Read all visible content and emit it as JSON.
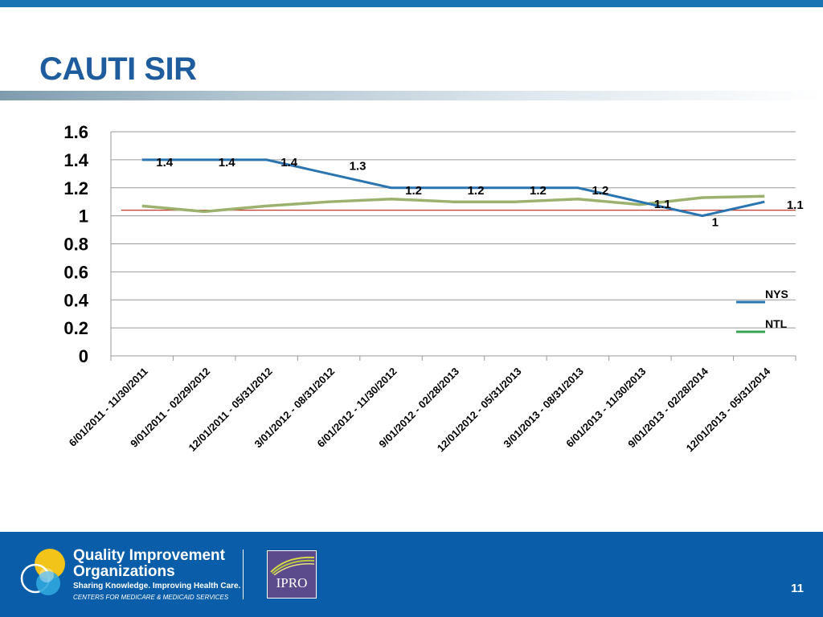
{
  "slide": {
    "title": "CAUTI SIR",
    "page_number": "11"
  },
  "colors": {
    "top_bar": "#1a74b4",
    "title": "#1f5c9e",
    "footer": "#0a5da8",
    "nys": "#2a74b0",
    "ntl_main": "#9cb16d",
    "ntl_legend": "#3aa35a",
    "baseline": "#c0392b",
    "grid": "#9a9a9a"
  },
  "chart_data": {
    "type": "line",
    "title": "",
    "xlabel": "",
    "ylabel": "",
    "ylim": [
      0,
      1.6
    ],
    "yticks": [
      0,
      0.2,
      0.4,
      0.6,
      0.8,
      1,
      1.2,
      1.4,
      1.6
    ],
    "ytick_labels": [
      "0",
      "0.2",
      "0.4",
      "0.6",
      "0.8",
      "1",
      "1.2",
      "1.4",
      "1.6"
    ],
    "grid": true,
    "legend_position": "right",
    "categories": [
      "6/01/2011 - 11/30/2011",
      "9/01/2011 - 02/29/2012",
      "12/01/2011 - 05/31/2012",
      "3/01/2012 - 08/31/2012",
      "6/01/2012 - 11/30/2012",
      "9/01/2012 - 02/28/2013",
      "12/01/2012 - 05/31/2013",
      "3/01/2013 - 08/31/2013",
      "6/01/2013 - 11/30/2013",
      "9/01/2013 - 02/28/2014",
      "12/01/2013 - 05/31/2014"
    ],
    "series": [
      {
        "name": "NYS",
        "values": [
          1.4,
          1.4,
          1.4,
          1.3,
          1.2,
          1.2,
          1.2,
          1.2,
          1.1,
          1.0,
          1.1
        ],
        "data_labels": [
          "1.4",
          "1.4",
          "1.4",
          "1.3",
          "1.2",
          "1.2",
          "1.2",
          "1.2",
          "1.1",
          "1",
          "1.1"
        ]
      },
      {
        "name": "NTL",
        "values": [
          1.07,
          1.03,
          1.07,
          1.1,
          1.12,
          1.1,
          1.1,
          1.12,
          1.08,
          1.13,
          1.14
        ]
      }
    ],
    "reference_line": {
      "value": 1.04
    }
  },
  "footer": {
    "org_line1": "Quality Improvement",
    "org_line2": "Organizations",
    "tagline": "Sharing Knowledge. Improving Health Care.",
    "subtitle": "CENTERS FOR MEDICARE & MEDICAID SERVICES",
    "partner_logo_text": "IPRO"
  }
}
